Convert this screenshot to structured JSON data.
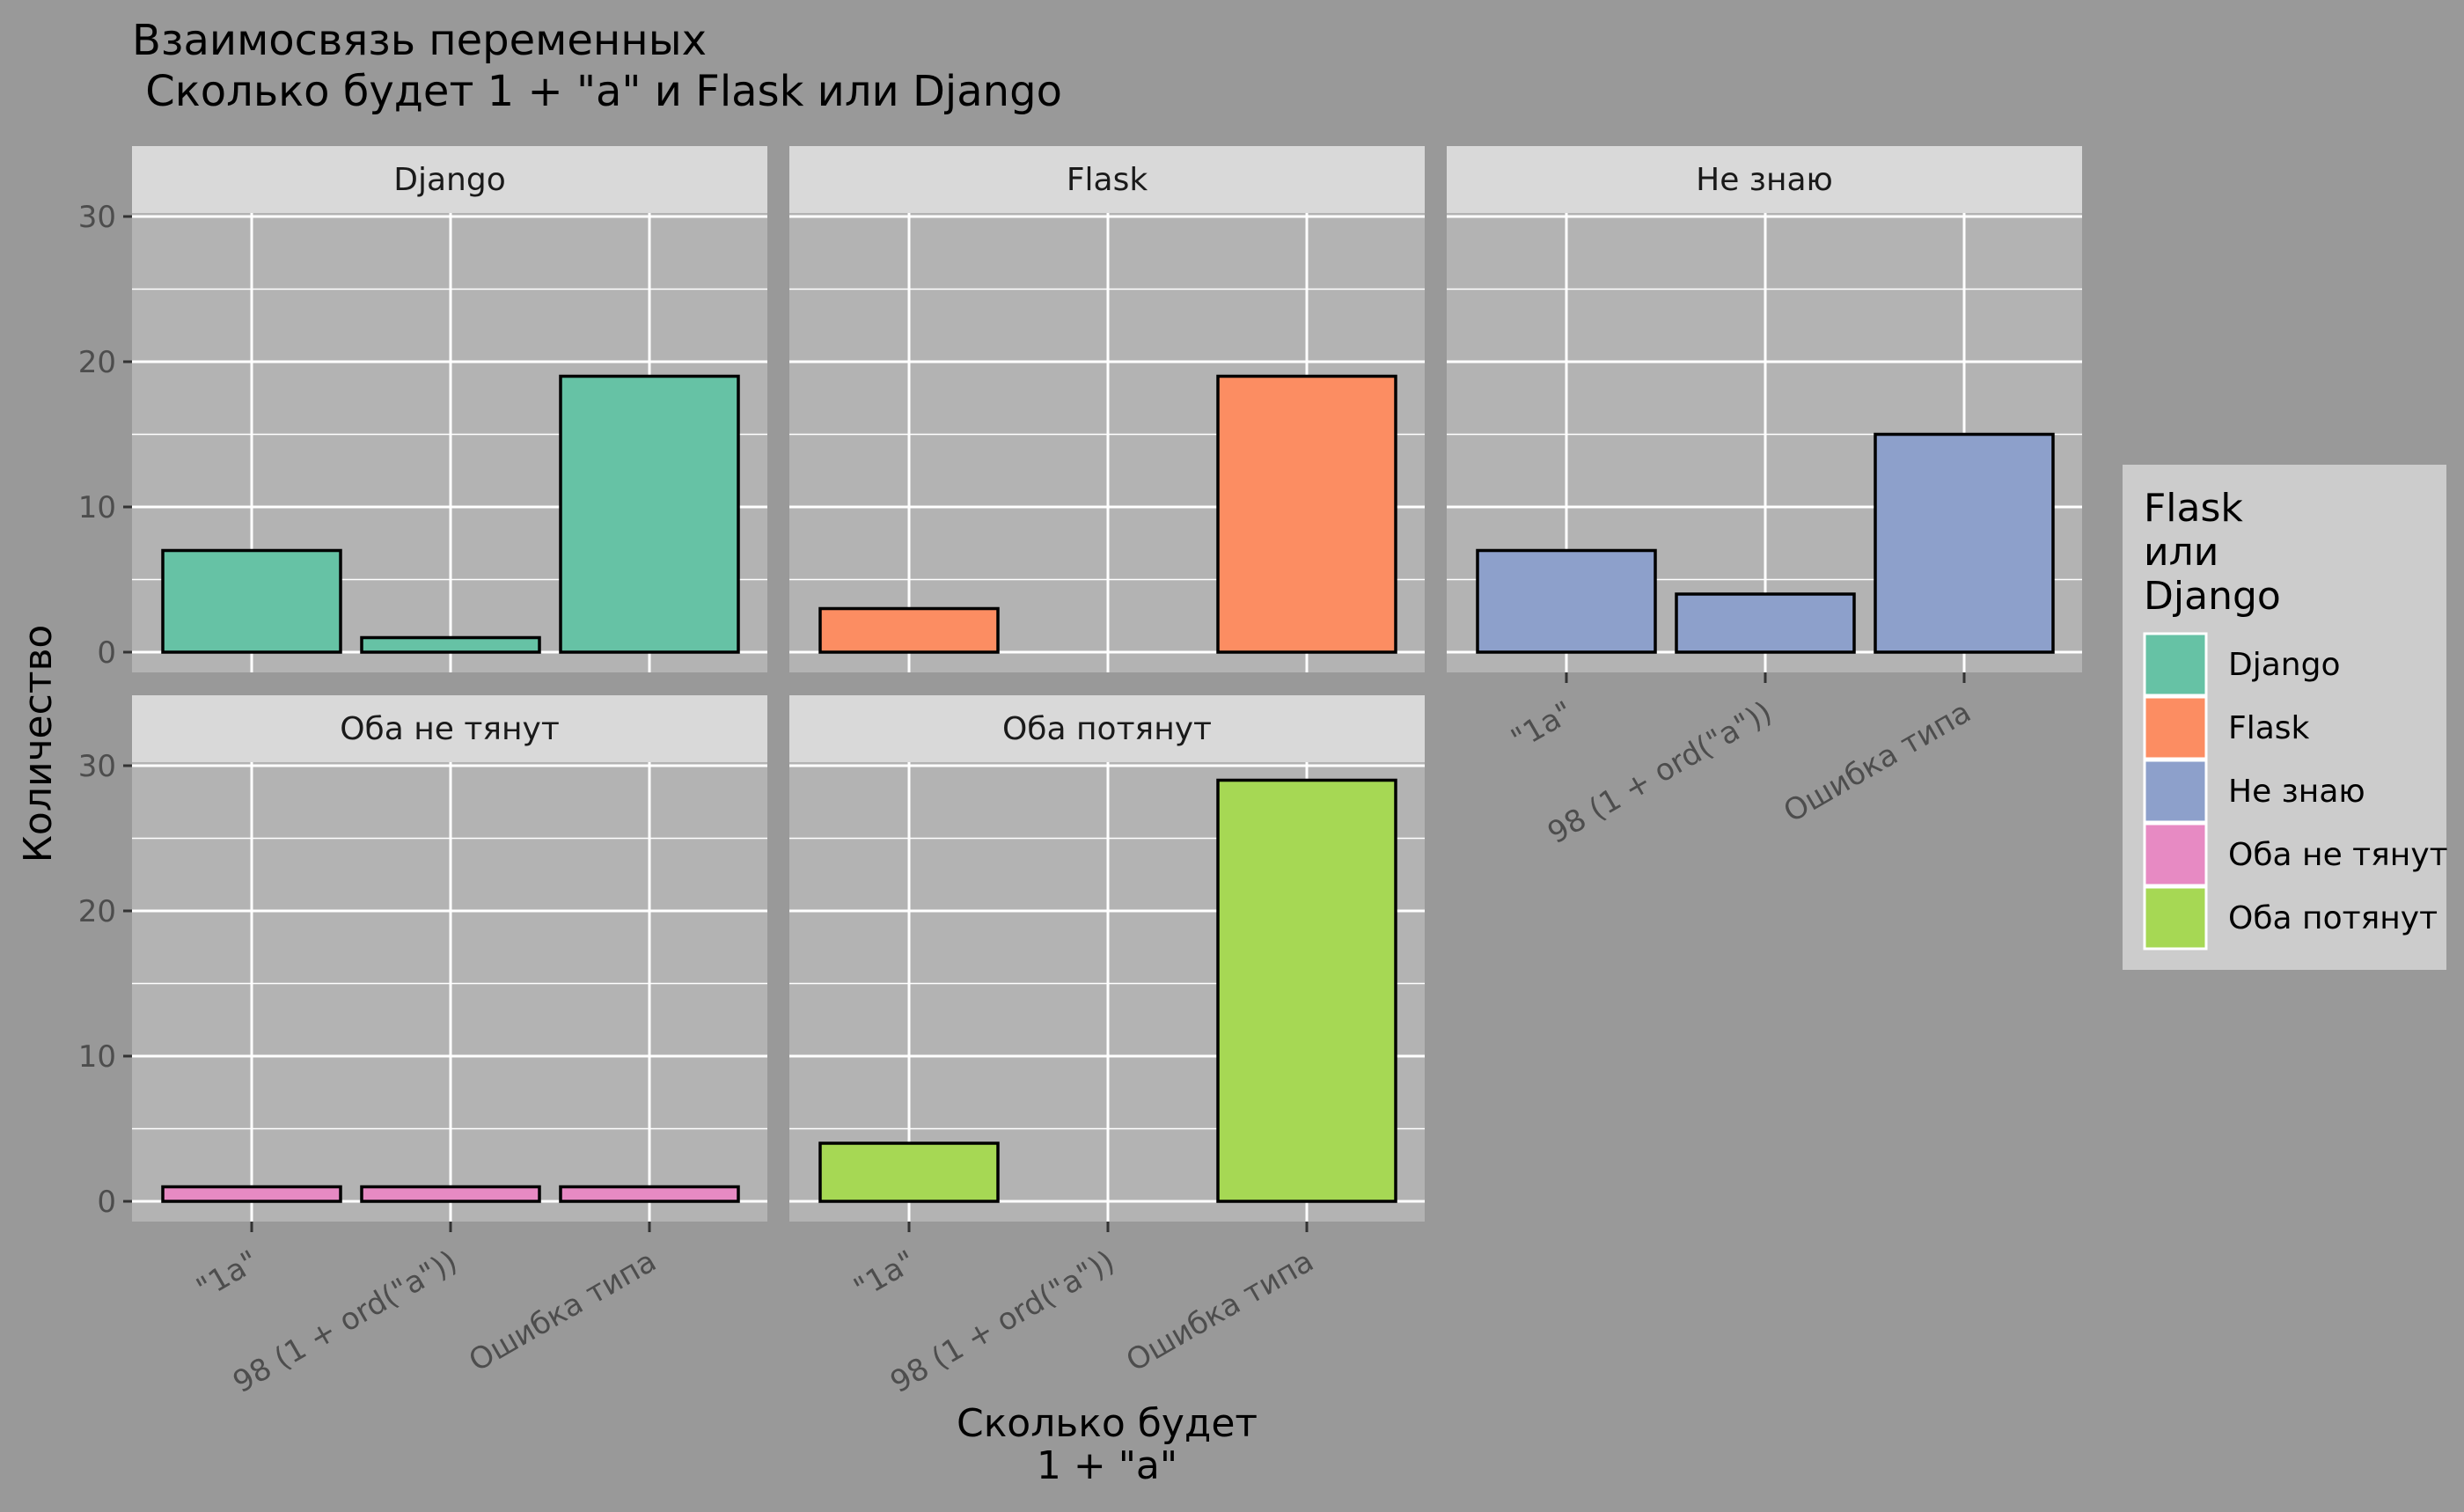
{
  "chart_data": {
    "type": "bar",
    "title_lines": [
      "Взаимосвязь переменных",
      " Сколько будет 1 + \"a\" и Flask или Django"
    ],
    "xlabel_lines": [
      "Сколько будет",
      "1 + \"a\""
    ],
    "ylabel": "Количество",
    "categories": [
      "\"1a\"",
      "98 (1 + ord(\"a\"))",
      "Ошибка типа"
    ],
    "ylim": [
      0,
      32
    ],
    "yticks": [
      0,
      10,
      20,
      30
    ],
    "grid": true,
    "legend_placement": "right",
    "legend": {
      "title_lines": [
        "Flask",
        "или",
        "Django"
      ],
      "entries": [
        {
          "label": "Django",
          "color": "#66c2a5"
        },
        {
          "label": "Flask",
          "color": "#fc8d62"
        },
        {
          "label": "Не знаю",
          "color": "#8da0cb"
        },
        {
          "label": "Оба не тянут",
          "color": "#e78ac3"
        },
        {
          "label": "Оба потянут",
          "color": "#a6d854"
        }
      ]
    },
    "facets": [
      {
        "label": "Django",
        "color": "#66c2a5",
        "values": [
          7,
          1,
          19
        ]
      },
      {
        "label": "Flask",
        "color": "#fc8d62",
        "values": [
          3,
          0,
          19
        ]
      },
      {
        "label": "Не знаю",
        "color": "#8da0cb",
        "values": [
          7,
          4,
          15
        ]
      },
      {
        "label": "Оба не тянут",
        "color": "#e78ac3",
        "values": [
          1,
          1,
          1
        ]
      },
      {
        "label": "Оба потянут",
        "color": "#a6d854",
        "values": [
          4,
          0,
          29
        ]
      }
    ]
  }
}
